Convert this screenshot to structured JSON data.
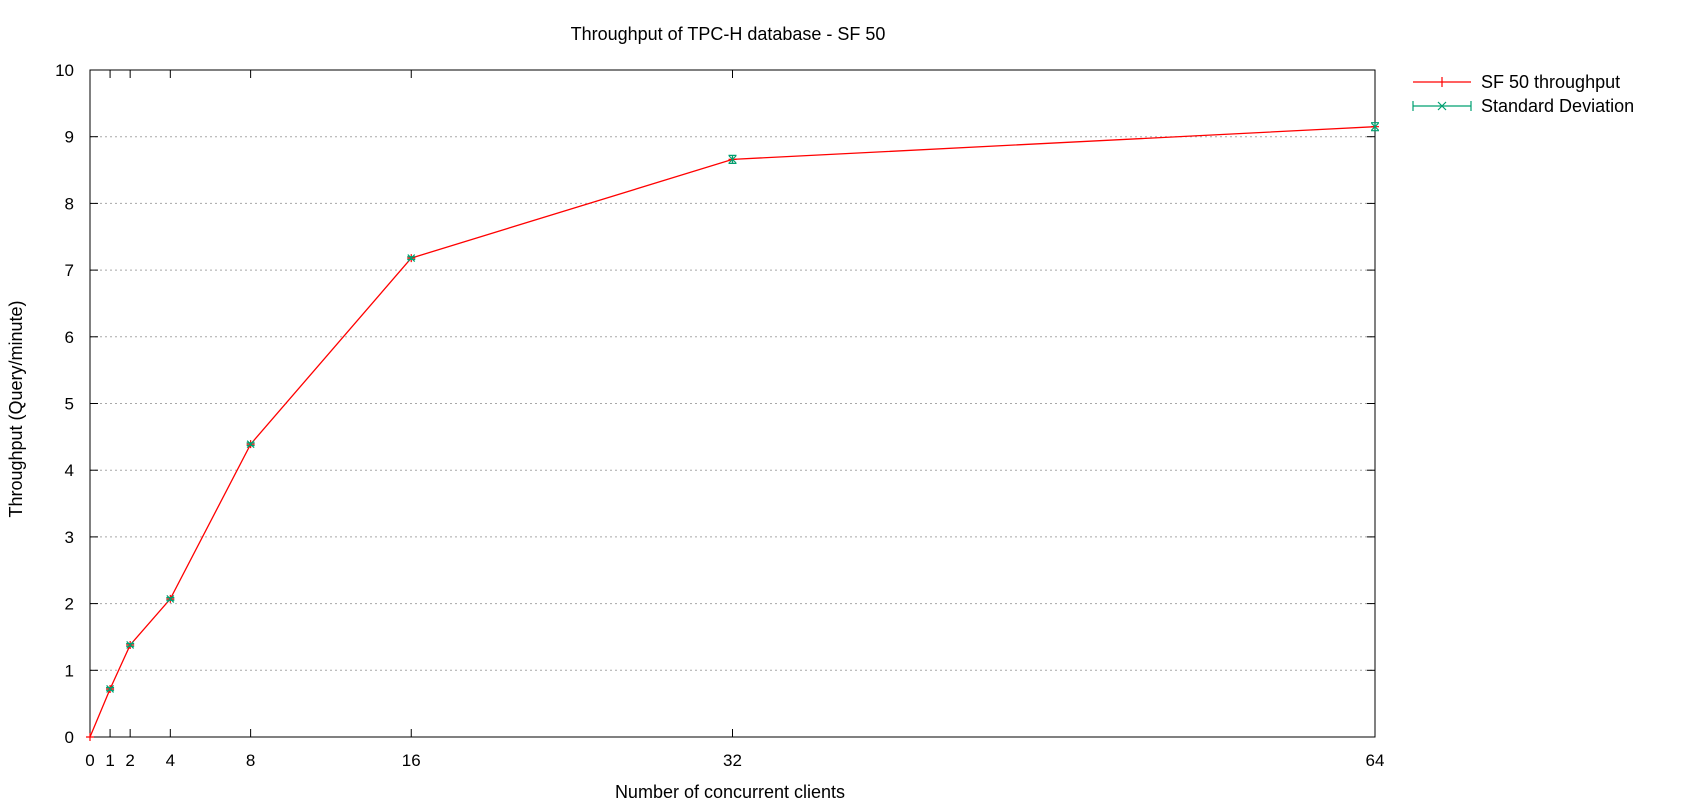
{
  "chart_data": {
    "type": "line",
    "title": "Throughput of TPC-H database - SF 50",
    "xlabel": "Number of concurrent clients",
    "ylabel": "Throughput (Query/minute)",
    "xlim": [
      0,
      64
    ],
    "ylim": [
      0,
      10
    ],
    "x_ticks": [
      0,
      1,
      2,
      4,
      8,
      16,
      32,
      64
    ],
    "y_ticks": [
      0,
      1,
      2,
      3,
      4,
      5,
      6,
      7,
      8,
      9,
      10
    ],
    "grid": "horizontal-dotted",
    "legend_position": "outside-top-right",
    "series": [
      {
        "name": "SF 50 throughput",
        "color": "#ff0000",
        "marker": "plus",
        "x": [
          0,
          1,
          2,
          4,
          8,
          16,
          32,
          64
        ],
        "y": [
          0,
          0.72,
          1.38,
          2.07,
          4.39,
          7.18,
          8.66,
          9.15
        ]
      },
      {
        "name": "Standard Deviation",
        "color": "#00a070",
        "marker": "cross",
        "kind": "errorbars",
        "x": [
          1,
          2,
          4,
          8,
          16,
          32,
          64
        ],
        "y": [
          0.72,
          1.38,
          2.07,
          4.39,
          7.18,
          8.66,
          9.15
        ],
        "err": [
          0.02,
          0.02,
          0.02,
          0.02,
          0.02,
          0.06,
          0.06
        ]
      }
    ]
  }
}
